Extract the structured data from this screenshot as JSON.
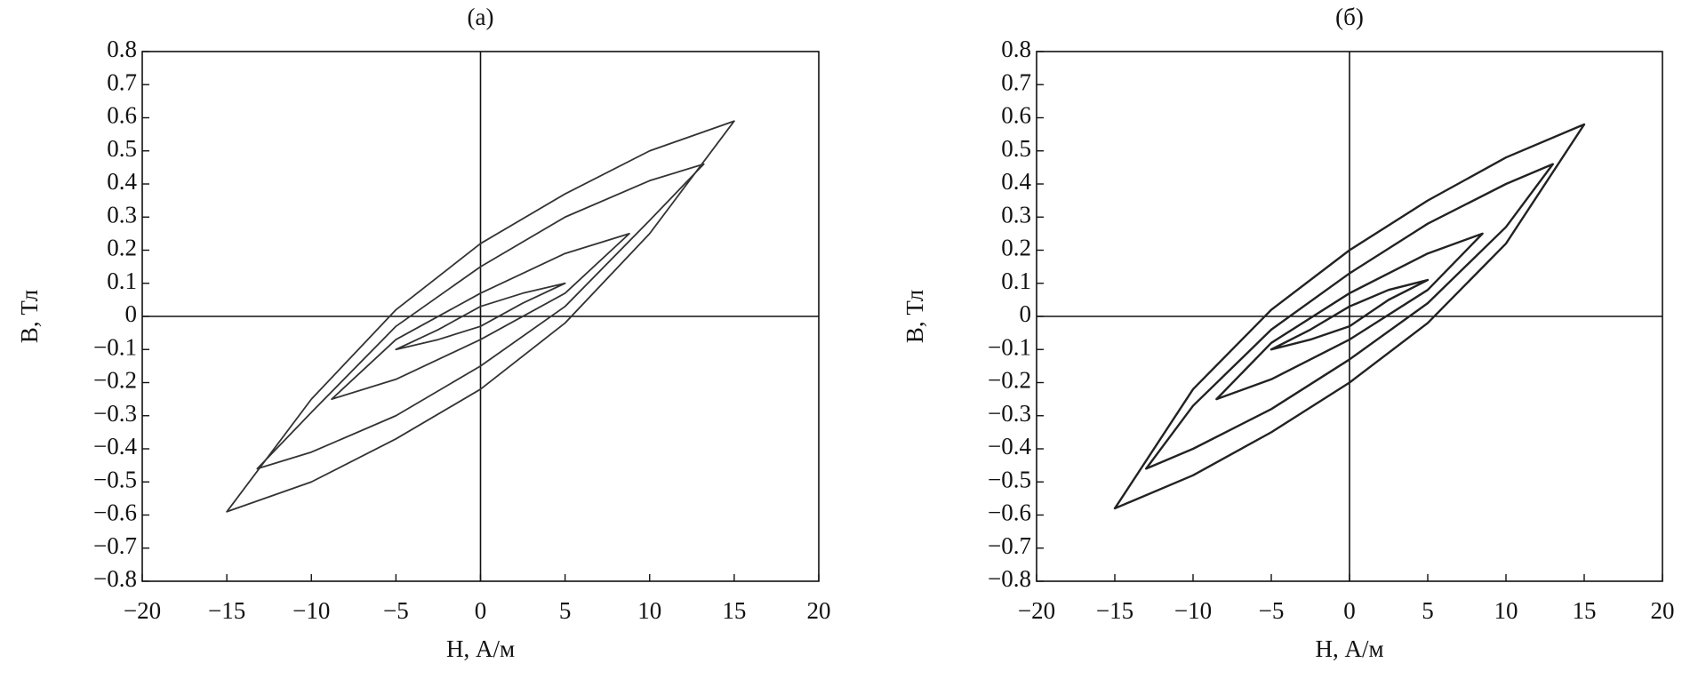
{
  "chart_data": [
    {
      "type": "line",
      "title": "(а)",
      "x_label": "H, А/м",
      "y_label": "B, Тл",
      "xlim": [
        -20,
        20
      ],
      "ylim": [
        -0.8,
        0.8
      ],
      "xticks": [
        {
          "value": -20,
          "label": "−20"
        },
        {
          "value": -15,
          "label": "−15"
        },
        {
          "value": -10,
          "label": "−10"
        },
        {
          "value": -5,
          "label": "−5"
        },
        0,
        5,
        10,
        15,
        20
      ],
      "yticks": [
        {
          "value": -0.8,
          "label": "−0.8"
        },
        {
          "value": -0.7,
          "label": "−0.7"
        },
        {
          "value": -0.6,
          "label": "−0.6"
        },
        {
          "value": -0.5,
          "label": "−0.5"
        },
        {
          "value": -0.4,
          "label": "−0.4"
        },
        {
          "value": -0.3,
          "label": "−0.3"
        },
        {
          "value": -0.2,
          "label": "−0.2"
        },
        {
          "value": -0.1,
          "label": "−0.1"
        },
        0,
        0.1,
        0.2,
        0.3,
        0.4,
        0.5,
        0.6,
        0.7,
        0.8
      ],
      "series": [
        {
          "color": "#333333",
          "x": [
            15,
            10,
            5,
            0,
            -5,
            -10,
            -15,
            -10,
            -5,
            0,
            5,
            10
          ],
          "values": [
            0.59,
            0.5,
            0.37,
            0.22,
            0.02,
            -0.25,
            -0.59,
            -0.5,
            -0.37,
            -0.22,
            -0.02,
            0.25
          ]
        },
        {
          "color": "#333333",
          "x": [
            13.2,
            10,
            5,
            0,
            -5,
            -10,
            -13.2,
            -10,
            -5,
            0,
            5,
            10
          ],
          "values": [
            0.46,
            0.41,
            0.3,
            0.15,
            -0.03,
            -0.29,
            -0.46,
            -0.41,
            -0.3,
            -0.15,
            0.03,
            0.29
          ]
        },
        {
          "color": "#333333",
          "x": [
            8.8,
            5,
            0,
            -5,
            -8.8,
            -5,
            0,
            5
          ],
          "values": [
            0.25,
            0.19,
            0.07,
            -0.07,
            -0.25,
            -0.19,
            -0.07,
            0.07
          ]
        },
        {
          "color": "#333333",
          "x": [
            5,
            2.5,
            0,
            -2.5,
            -5,
            -2.5,
            0,
            2.5
          ],
          "values": [
            0.1,
            0.07,
            0.03,
            -0.04,
            -0.1,
            -0.07,
            -0.03,
            0.04
          ]
        }
      ]
    },
    {
      "type": "line",
      "title": "(б)",
      "x_label": "H, А/м",
      "y_label": "B, Тл",
      "xlim": [
        -20,
        20
      ],
      "ylim": [
        -0.8,
        0.8
      ],
      "xticks": [
        {
          "value": -20,
          "label": "−20"
        },
        {
          "value": -15,
          "label": "−15"
        },
        {
          "value": -10,
          "label": "−10"
        },
        {
          "value": -5,
          "label": "−5"
        },
        0,
        5,
        10,
        15,
        20
      ],
      "yticks": [
        {
          "value": -0.8,
          "label": "−0.8"
        },
        {
          "value": -0.7,
          "label": "−0.7"
        },
        {
          "value": -0.6,
          "label": "−0.6"
        },
        {
          "value": -0.5,
          "label": "−0.5"
        },
        {
          "value": -0.4,
          "label": "−0.4"
        },
        {
          "value": -0.3,
          "label": "−0.3"
        },
        {
          "value": -0.2,
          "label": "−0.2"
        },
        {
          "value": -0.1,
          "label": "−0.1"
        },
        0,
        0.1,
        0.2,
        0.3,
        0.4,
        0.5,
        0.6,
        0.7,
        0.8
      ],
      "series": [
        {
          "color": "#222222",
          "x": [
            15,
            10,
            5,
            0,
            -5,
            -10,
            -15,
            -10,
            -5,
            0,
            5,
            10
          ],
          "values": [
            0.58,
            0.48,
            0.35,
            0.2,
            0.02,
            -0.22,
            -0.58,
            -0.48,
            -0.35,
            -0.2,
            -0.02,
            0.22
          ]
        },
        {
          "color": "#222222",
          "x": [
            13,
            10,
            5,
            0,
            -5,
            -10,
            -13,
            -10,
            -5,
            0,
            5,
            10
          ],
          "values": [
            0.46,
            0.4,
            0.28,
            0.13,
            -0.04,
            -0.27,
            -0.46,
            -0.4,
            -0.28,
            -0.13,
            0.04,
            0.27
          ]
        },
        {
          "color": "#222222",
          "x": [
            8.5,
            5,
            0,
            -5,
            -8.5,
            -5,
            0,
            5
          ],
          "values": [
            0.25,
            0.19,
            0.07,
            -0.08,
            -0.25,
            -0.19,
            -0.07,
            0.08
          ]
        },
        {
          "color": "#222222",
          "x": [
            5,
            2.5,
            0,
            -2.5,
            -5,
            -2.5,
            0,
            2.5
          ],
          "values": [
            0.11,
            0.08,
            0.03,
            -0.04,
            -0.1,
            -0.07,
            -0.03,
            0.05
          ]
        }
      ]
    }
  ]
}
